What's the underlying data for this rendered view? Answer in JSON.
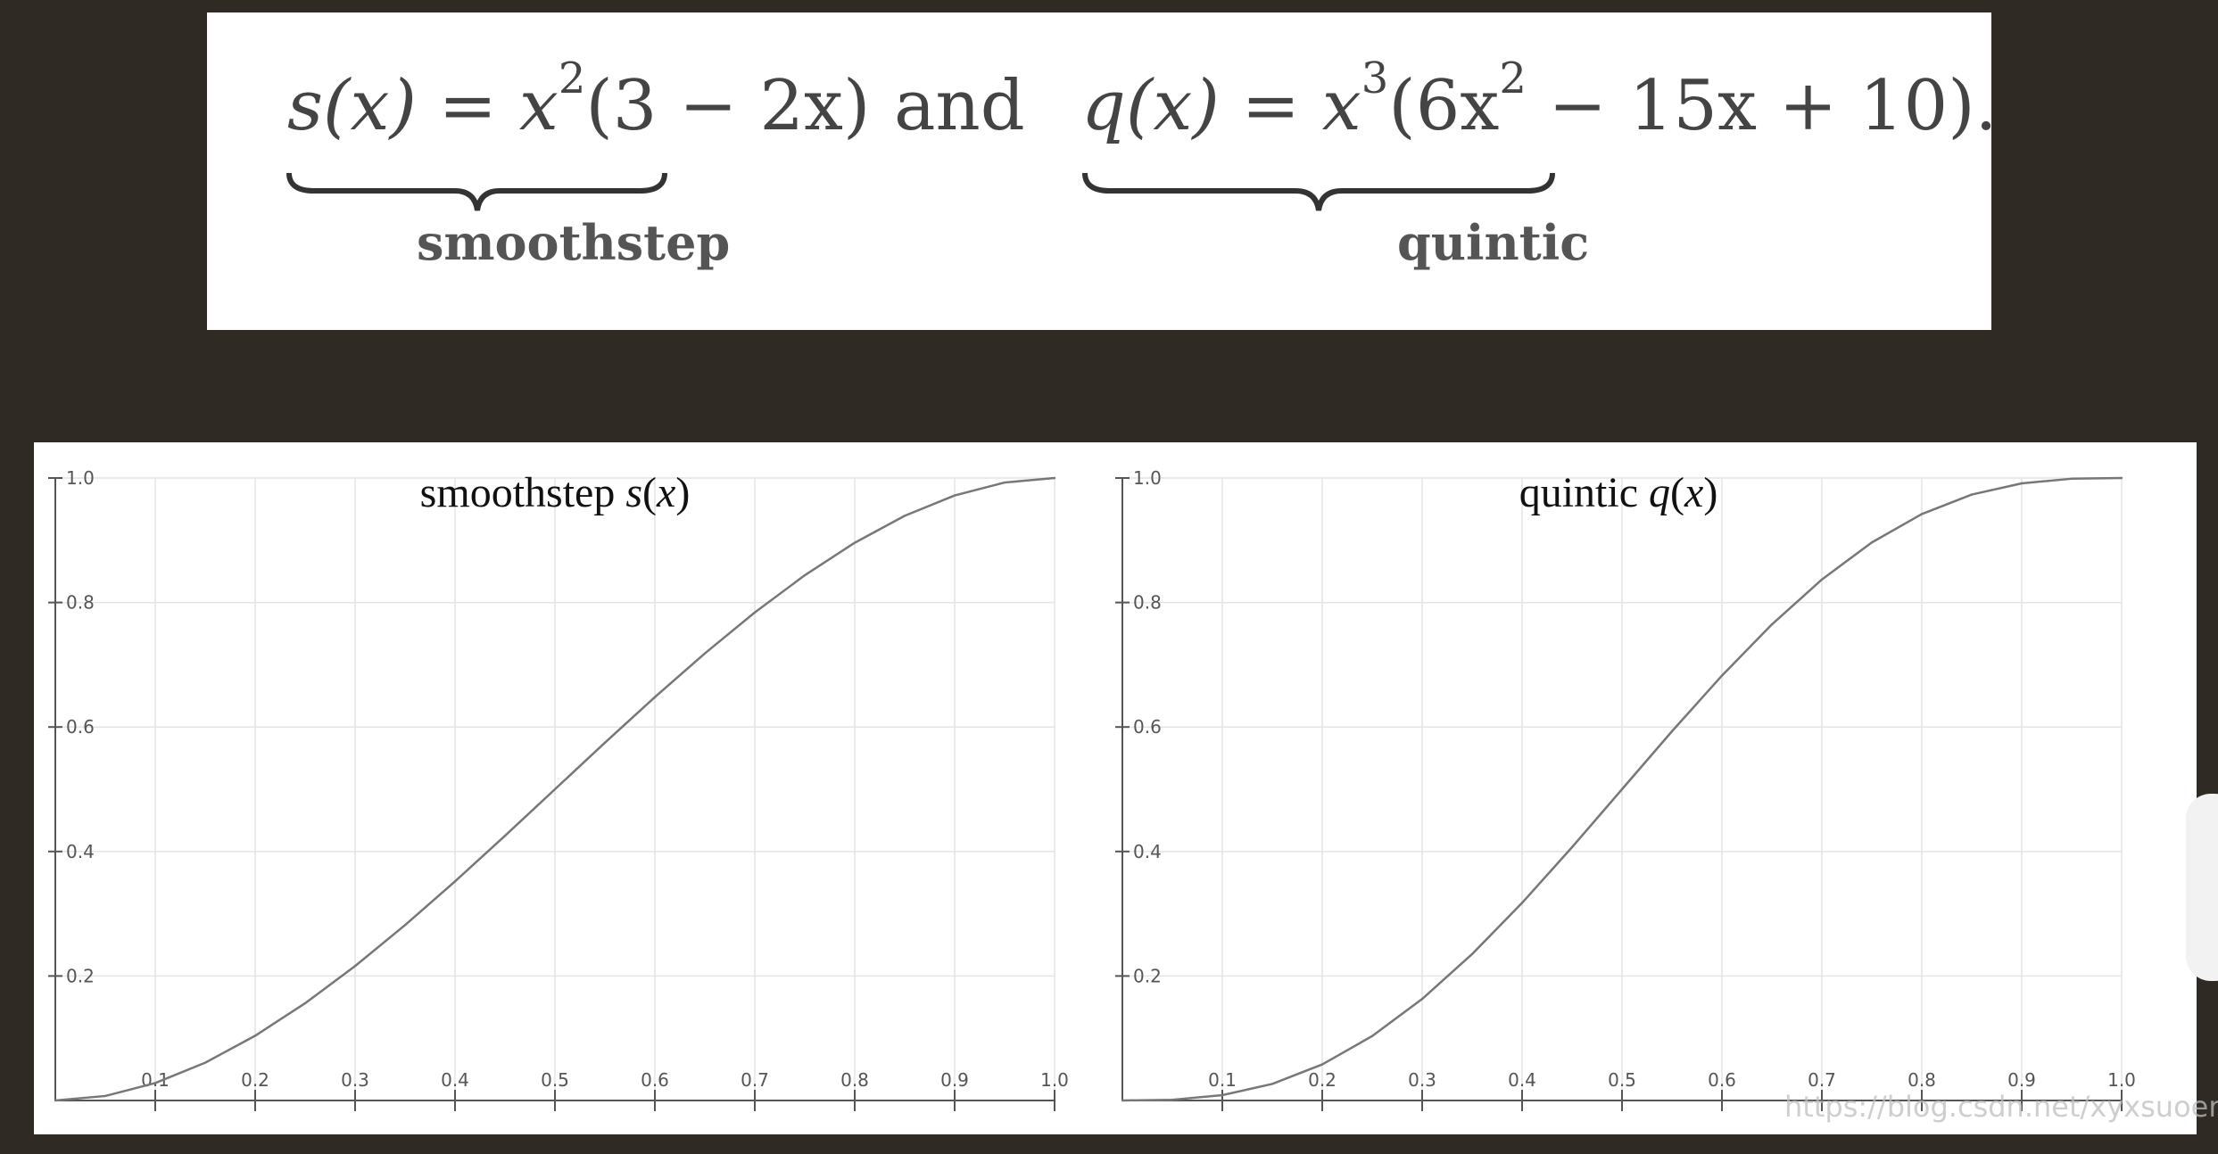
{
  "formulas": {
    "s_lhs": "s(x) = x",
    "s_exp": "2",
    "s_rhs": "(3 − 2x)",
    "connector": "and",
    "q_lhs": "q(x) = x",
    "q_exp1": "3",
    "q_mid": "(6x",
    "q_exp2": "2",
    "q_rhs": " − 15x + 10)",
    "period": ".",
    "s_label": "smoothstep",
    "q_label": "quintic"
  },
  "watermark": "https://blog.csdn.net/xyxsuoer",
  "chart_data": [
    {
      "type": "line",
      "title": "smoothstep s(x)",
      "function": "x^2(3-2x)",
      "x": [
        0,
        0.05,
        0.1,
        0.15,
        0.2,
        0.25,
        0.3,
        0.35,
        0.4,
        0.45,
        0.5,
        0.55,
        0.6,
        0.65,
        0.7,
        0.75,
        0.8,
        0.85,
        0.9,
        0.95,
        1.0
      ],
      "y": [
        0,
        0.00725,
        0.028,
        0.06075,
        0.104,
        0.15625,
        0.216,
        0.28175,
        0.352,
        0.42525,
        0.5,
        0.57475,
        0.648,
        0.71825,
        0.784,
        0.84375,
        0.896,
        0.93925,
        0.972,
        0.99275,
        1.0
      ],
      "xlim": [
        0,
        1
      ],
      "ylim": [
        0,
        1
      ],
      "x_ticks": [
        "0.1",
        "0.2",
        "0.3",
        "0.4",
        "0.5",
        "0.6",
        "0.7",
        "0.8",
        "0.9",
        "1.0"
      ],
      "y_ticks": [
        "0.2",
        "0.4",
        "0.6",
        "0.8",
        "1.0"
      ],
      "grid": true,
      "line_color": "#777777"
    },
    {
      "type": "line",
      "title": "quintic q(x)",
      "function": "x^3(6x^2-15x+10)",
      "x": [
        0,
        0.05,
        0.1,
        0.15,
        0.2,
        0.25,
        0.3,
        0.35,
        0.4,
        0.45,
        0.5,
        0.55,
        0.6,
        0.65,
        0.7,
        0.75,
        0.8,
        0.85,
        0.9,
        0.95,
        1.0
      ],
      "y": [
        0,
        0.00116,
        0.00856,
        0.02661,
        0.05792,
        0.10352,
        0.16308,
        0.23517,
        0.31744,
        0.40687,
        0.5,
        0.59313,
        0.68256,
        0.76483,
        0.83692,
        0.89648,
        0.94208,
        0.97339,
        0.99144,
        0.99884,
        1.0
      ],
      "xlim": [
        0,
        1
      ],
      "ylim": [
        0,
        1
      ],
      "x_ticks": [
        "0.1",
        "0.2",
        "0.3",
        "0.4",
        "0.5",
        "0.6",
        "0.7",
        "0.8",
        "0.9",
        "1.0"
      ],
      "y_ticks": [
        "0.2",
        "0.4",
        "0.6",
        "0.8",
        "1.0"
      ],
      "grid": true,
      "line_color": "#777777"
    }
  ]
}
